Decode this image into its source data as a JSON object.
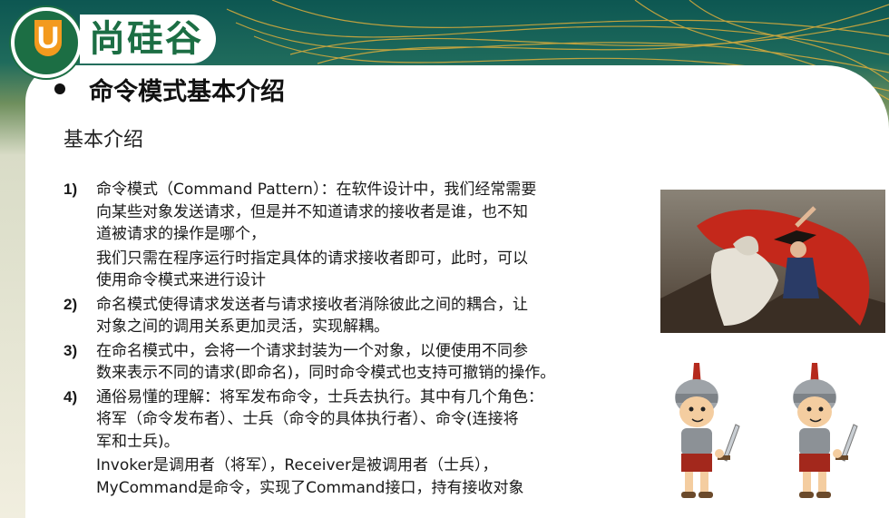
{
  "brand": {
    "logo_letter": "U",
    "name": "尚硅谷"
  },
  "slide": {
    "title": "命令模式基本介绍",
    "subtitle": "基本介绍",
    "items": [
      {
        "num": "1)",
        "lines": [
          "命令模式（Command Pattern）：在软件设计中，我们经常需要",
          "向某些对象发送请求，但是并不知道请求的接收者是谁，也不知",
          "道被请求的操作是哪个，",
          "我们只需在程序运行时指定具体的请求接收者即可，此时，可以",
          "使用命令模式来进行设计"
        ]
      },
      {
        "num": "2)",
        "lines": [
          "命名模式使得请求发送者与请求接收者消除彼此之间的耦合，让",
          "对象之间的调用关系更加灵活，实现解耦。"
        ]
      },
      {
        "num": "3)",
        "lines": [
          "在命名模式中，会将一个请求封装为一个对象，以便使用不同参",
          "数来表示不同的请求(即命名)，同时命令模式也支持可撤销的操作。"
        ]
      },
      {
        "num": "4)",
        "lines": [
          "通俗易懂的理解：将军发布命令，士兵去执行。其中有几个角色：",
          "将军（命令发布者）、士兵（命令的具体执行者）、命令(连接将",
          "军和士兵)。",
          "Invoker是调用者（将军），Receiver是被调用者（士兵），",
          "MyCommand是命令，实现了Command接口，持有接收对象"
        ]
      }
    ]
  },
  "colors": {
    "brand_green": "#1c6e44",
    "brand_orange": "#f39a1e",
    "header_teal": "#0d5752"
  },
  "images": {
    "painting": "napoleon-crossing-alps-painting",
    "soldiers": [
      "roman-soldier-cartoon",
      "roman-soldier-cartoon"
    ]
  }
}
